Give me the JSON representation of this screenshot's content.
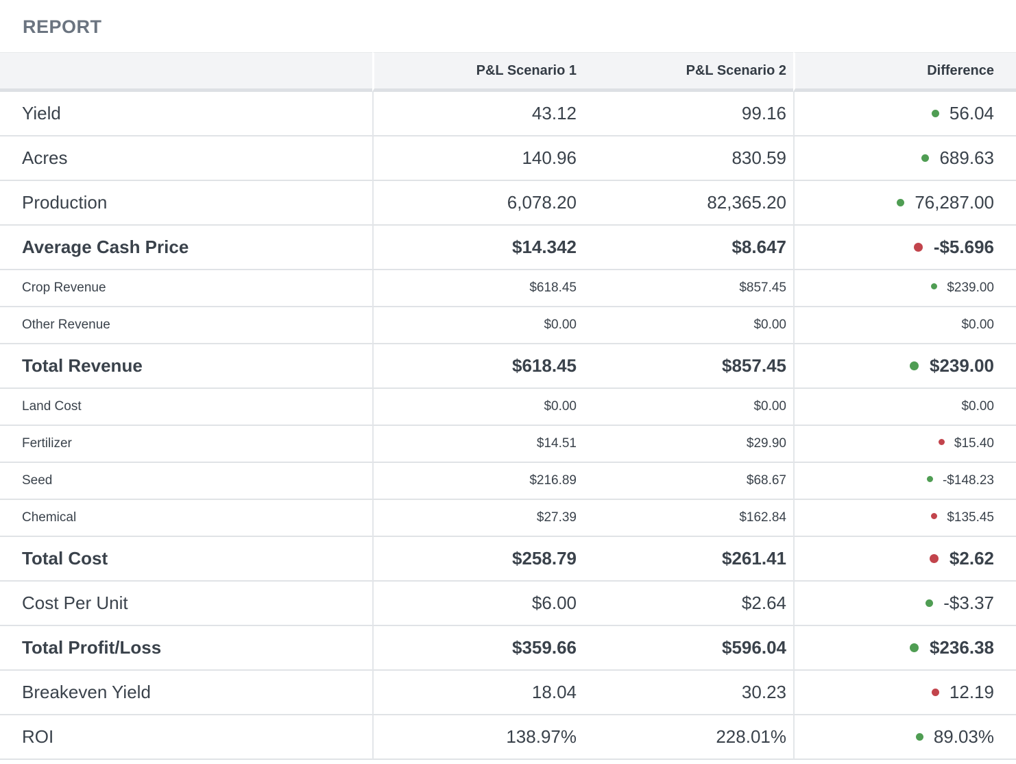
{
  "page": {
    "title": "REPORT"
  },
  "table": {
    "columns": {
      "label": "",
      "scenario1": "P&L Scenario 1",
      "scenario2": "P&L Scenario 2",
      "difference": "Difference"
    },
    "rows": [
      {
        "label": "Yield",
        "scenario1": "43.12",
        "scenario2": "99.16",
        "difference": "56.04",
        "indicator": "positive",
        "emphasis": "normal"
      },
      {
        "label": "Acres",
        "scenario1": "140.96",
        "scenario2": "830.59",
        "difference": "689.63",
        "indicator": "positive",
        "emphasis": "normal"
      },
      {
        "label": "Production",
        "scenario1": "6,078.20",
        "scenario2": "82,365.20",
        "difference": "76,287.00",
        "indicator": "positive",
        "emphasis": "normal"
      },
      {
        "label": "Average Cash Price",
        "scenario1": "$14.342",
        "scenario2": "$8.647",
        "difference": "-$5.696",
        "indicator": "negative",
        "emphasis": "bold"
      },
      {
        "label": "Crop Revenue",
        "scenario1": "$618.45",
        "scenario2": "$857.45",
        "difference": "$239.00",
        "indicator": "positive",
        "emphasis": "compact"
      },
      {
        "label": "Other Revenue",
        "scenario1": "$0.00",
        "scenario2": "$0.00",
        "difference": "$0.00",
        "indicator": "none",
        "emphasis": "compact"
      },
      {
        "label": "Total Revenue",
        "scenario1": "$618.45",
        "scenario2": "$857.45",
        "difference": "$239.00",
        "indicator": "positive",
        "emphasis": "bold"
      },
      {
        "label": "Land Cost",
        "scenario1": "$0.00",
        "scenario2": "$0.00",
        "difference": "$0.00",
        "indicator": "none",
        "emphasis": "compact"
      },
      {
        "label": "Fertilizer",
        "scenario1": "$14.51",
        "scenario2": "$29.90",
        "difference": "$15.40",
        "indicator": "negative",
        "emphasis": "compact"
      },
      {
        "label": "Seed",
        "scenario1": "$216.89",
        "scenario2": "$68.67",
        "difference": "-$148.23",
        "indicator": "positive",
        "emphasis": "compact"
      },
      {
        "label": "Chemical",
        "scenario1": "$27.39",
        "scenario2": "$162.84",
        "difference": "$135.45",
        "indicator": "negative",
        "emphasis": "compact"
      },
      {
        "label": "Total Cost",
        "scenario1": "$258.79",
        "scenario2": "$261.41",
        "difference": "$2.62",
        "indicator": "negative",
        "emphasis": "bold"
      },
      {
        "label": "Cost Per Unit",
        "scenario1": "$6.00",
        "scenario2": "$2.64",
        "difference": "-$3.37",
        "indicator": "positive",
        "emphasis": "normal"
      },
      {
        "label": "Total Profit/Loss",
        "scenario1": "$359.66",
        "scenario2": "$596.04",
        "difference": "$236.38",
        "indicator": "positive",
        "emphasis": "bold"
      },
      {
        "label": "Breakeven Yield",
        "scenario1": "18.04",
        "scenario2": "30.23",
        "difference": "12.19",
        "indicator": "negative",
        "emphasis": "normal"
      },
      {
        "label": "ROI",
        "scenario1": "138.97%",
        "scenario2": "228.01%",
        "difference": "89.03%",
        "indicator": "positive",
        "emphasis": "normal"
      }
    ]
  },
  "colors": {
    "positive_dot": "#4f9d53",
    "negative_dot": "#c2444c",
    "text": "#3a424b",
    "title_text": "#6b7480",
    "header_bg": "#f3f4f6",
    "row_border": "#e0e3e6"
  }
}
